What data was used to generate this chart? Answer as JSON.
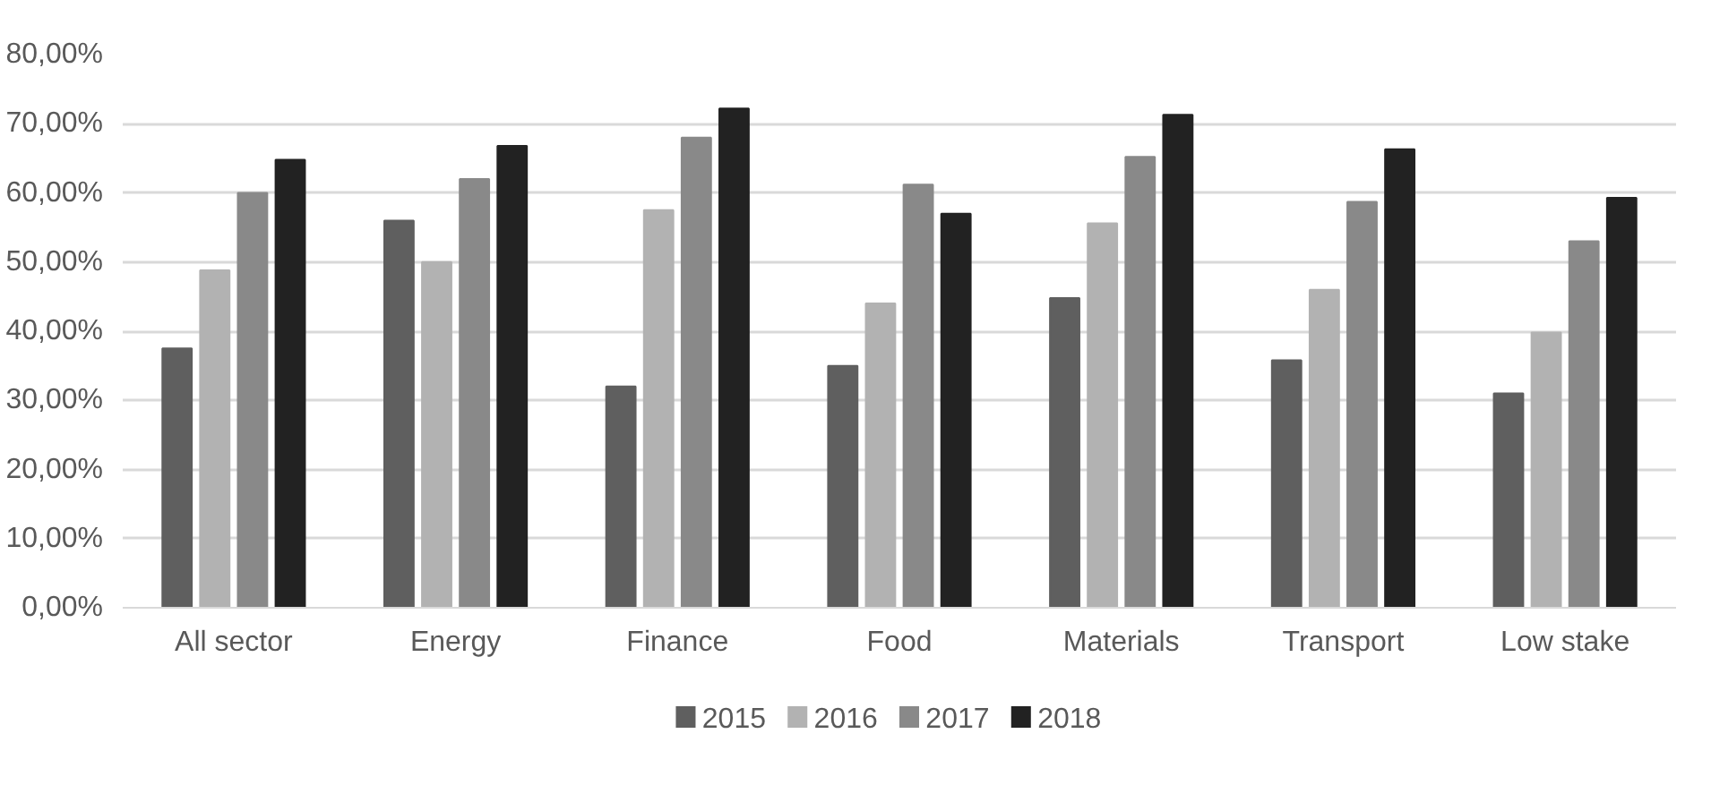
{
  "chart_data": {
    "type": "bar",
    "categories": [
      "All sector",
      "Energy",
      "Finance",
      "Food",
      "Materials",
      "Transport",
      "Low stake"
    ],
    "series": [
      {
        "name": "2015",
        "color": "#5f5f5f",
        "values": [
          37.5,
          56,
          32,
          35,
          44.8,
          35.8,
          31
        ]
      },
      {
        "name": "2016",
        "color": "#b2b2b2",
        "values": [
          48.8,
          50,
          57.5,
          44,
          55.6,
          46,
          39.8
        ]
      },
      {
        "name": "2017",
        "color": "#898989",
        "values": [
          60,
          62,
          68,
          61.2,
          65.2,
          58.7,
          53
        ]
      },
      {
        "name": "2018",
        "color": "#222222",
        "values": [
          64.8,
          66.8,
          72.2,
          57,
          71.3,
          66.3,
          59.3
        ]
      }
    ],
    "ylim": [
      0,
      80
    ],
    "yticks": [
      {
        "value": 0,
        "label": "0,00%"
      },
      {
        "value": 10,
        "label": "10,00%"
      },
      {
        "value": 20,
        "label": "20,00%"
      },
      {
        "value": 30,
        "label": "30,00%"
      },
      {
        "value": 40,
        "label": "40,00%"
      },
      {
        "value": 50,
        "label": "50,00%"
      },
      {
        "value": 60,
        "label": "60,00%"
      },
      {
        "value": 70,
        "label": "70,00%"
      },
      {
        "value": 80,
        "label": "80,00%"
      }
    ],
    "grid": "y",
    "legend": "bottom"
  }
}
